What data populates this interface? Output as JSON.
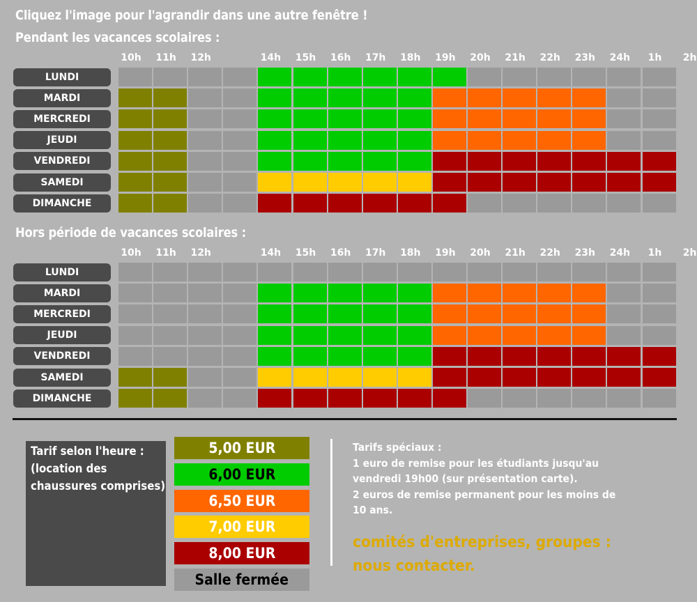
{
  "page": {
    "heading": "Cliquez l'image pour l'agrandir dans une autre fenêtre !"
  },
  "colors": {
    "olive": "#808000",
    "green": "#00cc00",
    "orange": "#ff6600",
    "yellow": "#ffcc00",
    "red": "#aa0000",
    "closed": "#9a9a9a",
    "label_bg": "#4a4a4a"
  },
  "hours": [
    "10h",
    "11h",
    "12h",
    "",
    "14h",
    "15h",
    "16h",
    "17h",
    "18h",
    "19h",
    "20h",
    "21h",
    "22h",
    "23h",
    "24h",
    "1h",
    "2h"
  ],
  "days": [
    "LUNDI",
    "MARDI",
    "MERCREDI",
    "JEUDI",
    "VENDREDI",
    "SAMEDI",
    "DIMANCHE"
  ],
  "schedules": [
    {
      "title": "Pendant les vacances scolaires :",
      "grid": [
        [
          "closed",
          "closed",
          "closed",
          "closed",
          "green",
          "green",
          "green",
          "green",
          "green",
          "green",
          "closed",
          "closed",
          "closed",
          "closed",
          "closed",
          "closed"
        ],
        [
          "olive",
          "olive",
          "closed",
          "closed",
          "green",
          "green",
          "green",
          "green",
          "green",
          "orange",
          "orange",
          "orange",
          "orange",
          "orange",
          "closed",
          "closed"
        ],
        [
          "olive",
          "olive",
          "closed",
          "closed",
          "green",
          "green",
          "green",
          "green",
          "green",
          "orange",
          "orange",
          "orange",
          "orange",
          "orange",
          "closed",
          "closed"
        ],
        [
          "olive",
          "olive",
          "closed",
          "closed",
          "green",
          "green",
          "green",
          "green",
          "green",
          "orange",
          "orange",
          "orange",
          "orange",
          "orange",
          "closed",
          "closed"
        ],
        [
          "olive",
          "olive",
          "closed",
          "closed",
          "green",
          "green",
          "green",
          "green",
          "green",
          "red",
          "red",
          "red",
          "red",
          "red",
          "red",
          "red"
        ],
        [
          "olive",
          "olive",
          "closed",
          "closed",
          "yellow",
          "yellow",
          "yellow",
          "yellow",
          "yellow",
          "red",
          "red",
          "red",
          "red",
          "red",
          "red",
          "red"
        ],
        [
          "olive",
          "olive",
          "closed",
          "closed",
          "red",
          "red",
          "red",
          "red",
          "red",
          "red",
          "closed",
          "closed",
          "closed",
          "closed",
          "closed",
          "closed"
        ]
      ]
    },
    {
      "title": "Hors période de vacances scolaires :",
      "grid": [
        [
          "closed",
          "closed",
          "closed",
          "closed",
          "closed",
          "closed",
          "closed",
          "closed",
          "closed",
          "closed",
          "closed",
          "closed",
          "closed",
          "closed",
          "closed",
          "closed"
        ],
        [
          "closed",
          "closed",
          "closed",
          "closed",
          "green",
          "green",
          "green",
          "green",
          "green",
          "orange",
          "orange",
          "orange",
          "orange",
          "orange",
          "closed",
          "closed"
        ],
        [
          "closed",
          "closed",
          "closed",
          "closed",
          "green",
          "green",
          "green",
          "green",
          "green",
          "orange",
          "orange",
          "orange",
          "orange",
          "orange",
          "closed",
          "closed"
        ],
        [
          "closed",
          "closed",
          "closed",
          "closed",
          "green",
          "green",
          "green",
          "green",
          "green",
          "orange",
          "orange",
          "orange",
          "orange",
          "orange",
          "closed",
          "closed"
        ],
        [
          "closed",
          "closed",
          "closed",
          "closed",
          "green",
          "green",
          "green",
          "green",
          "green",
          "red",
          "red",
          "red",
          "red",
          "red",
          "red",
          "red"
        ],
        [
          "olive",
          "olive",
          "closed",
          "closed",
          "yellow",
          "yellow",
          "yellow",
          "yellow",
          "yellow",
          "red",
          "red",
          "red",
          "red",
          "red",
          "red",
          "red"
        ],
        [
          "olive",
          "olive",
          "closed",
          "closed",
          "red",
          "red",
          "red",
          "red",
          "red",
          "red",
          "closed",
          "closed",
          "closed",
          "closed",
          "closed",
          "closed"
        ]
      ]
    }
  ],
  "legend": {
    "lines": [
      "Tarif selon l'heure :",
      "(location des",
      "chaussures comprises)"
    ],
    "prices": [
      {
        "label": "5,00 EUR",
        "color": "olive",
        "text_color": "#ffffff"
      },
      {
        "label": "6,00 EUR",
        "color": "green",
        "text_color": "#000000"
      },
      {
        "label": "6,50 EUR",
        "color": "orange",
        "text_color": "#ffffff"
      },
      {
        "label": "7,00 EUR",
        "color": "yellow",
        "text_color": "#ffffff"
      },
      {
        "label": "8,00 EUR",
        "color": "red",
        "text_color": "#ffffff"
      },
      {
        "label": "Salle fermée",
        "color": "closed",
        "text_color": "#000000"
      }
    ]
  },
  "special": {
    "lines": [
      "Tarifs spéciaux :",
      "1 euro de remise pour les étudiants jusqu'au",
      "vendredi 19h00 (sur présentation carte).",
      "2 euros de remise permanent pour les moins de",
      "10 ans."
    ],
    "contact_lines": [
      "comités d'entreprises, groupes :",
      "nous contacter."
    ]
  }
}
